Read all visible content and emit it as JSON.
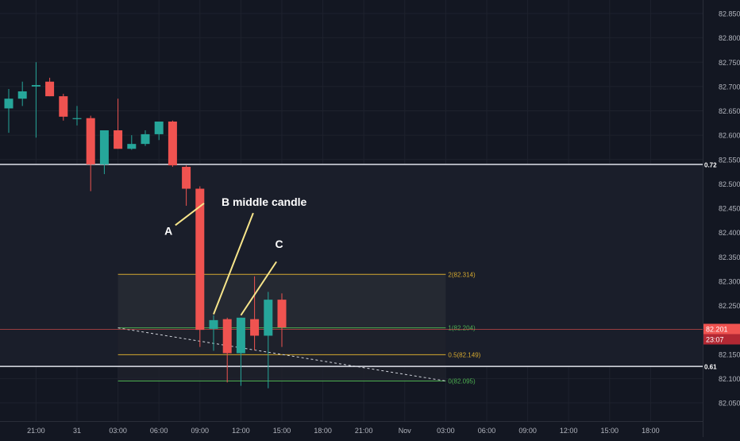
{
  "colors": {
    "background": "#131722",
    "up": "#26a69a",
    "down": "#ef5350",
    "grid": "#1e222d",
    "axis_text": "#b2b5be",
    "hline": "#e0e3eb",
    "fib_gold": "#d4a82f",
    "fib_green": "#4caf50",
    "price_line": "#ef5350",
    "annotation": "#f7e58a"
  },
  "chart_data": {
    "type": "candlestick",
    "title": "",
    "xlabel": "",
    "ylabel": "",
    "ylim": [
      82.02,
      82.86
    ],
    "yticks": [
      "82.850",
      "82.800",
      "82.750",
      "82.700",
      "82.650",
      "82.600",
      "82.550",
      "82.500",
      "82.450",
      "82.400",
      "82.350",
      "82.300",
      "82.250",
      "82.200",
      "82.150",
      "82.100",
      "82.050"
    ],
    "xticks": [
      {
        "i": 2,
        "label": "21:00"
      },
      {
        "i": 5,
        "label": "31"
      },
      {
        "i": 8,
        "label": "03:00"
      },
      {
        "i": 11,
        "label": "06:00"
      },
      {
        "i": 14,
        "label": "09:00"
      },
      {
        "i": 17,
        "label": "12:00"
      },
      {
        "i": 20,
        "label": "15:00"
      },
      {
        "i": 23,
        "label": "18:00"
      },
      {
        "i": 26,
        "label": "21:00"
      },
      {
        "i": 29,
        "label": "Nov"
      },
      {
        "i": 32,
        "label": "03:00"
      },
      {
        "i": 35,
        "label": "06:00"
      },
      {
        "i": 38,
        "label": "09:00"
      },
      {
        "i": 41,
        "label": "12:00"
      },
      {
        "i": 44,
        "label": "15:00"
      },
      {
        "i": 47,
        "label": "18:00"
      }
    ],
    "candles": [
      {
        "o": 82.655,
        "h": 82.695,
        "l": 82.605,
        "c": 82.675
      },
      {
        "o": 82.675,
        "h": 82.71,
        "l": 82.66,
        "c": 82.69
      },
      {
        "o": 82.7,
        "h": 82.75,
        "l": 82.595,
        "c": 82.703
      },
      {
        "o": 82.71,
        "h": 82.718,
        "l": 82.68,
        "c": 82.68
      },
      {
        "o": 82.68,
        "h": 82.685,
        "l": 82.63,
        "c": 82.638
      },
      {
        "o": 82.635,
        "h": 82.66,
        "l": 82.62,
        "c": 82.635
      },
      {
        "o": 82.635,
        "h": 82.64,
        "l": 82.485,
        "c": 82.54
      },
      {
        "o": 82.54,
        "h": 82.61,
        "l": 82.52,
        "c": 82.61
      },
      {
        "o": 82.61,
        "h": 82.675,
        "l": 82.572,
        "c": 82.572
      },
      {
        "o": 82.572,
        "h": 82.6,
        "l": 82.57,
        "c": 82.582
      },
      {
        "o": 82.582,
        "h": 82.61,
        "l": 82.578,
        "c": 82.602
      },
      {
        "o": 82.602,
        "h": 82.625,
        "l": 82.59,
        "c": 82.628
      },
      {
        "o": 82.628,
        "h": 82.63,
        "l": 82.535,
        "c": 82.538
      },
      {
        "o": 82.535,
        "h": 82.538,
        "l": 82.455,
        "c": 82.49
      },
      {
        "o": 82.49,
        "h": 82.495,
        "l": 82.165,
        "c": 82.2
      },
      {
        "o": 82.202,
        "h": 82.23,
        "l": 82.157,
        "c": 82.22
      },
      {
        "o": 82.222,
        "h": 82.225,
        "l": 82.092,
        "c": 82.152
      },
      {
        "o": 82.152,
        "h": 82.225,
        "l": 82.085,
        "c": 82.225
      },
      {
        "o": 82.222,
        "h": 82.31,
        "l": 82.158,
        "c": 82.188
      },
      {
        "o": 82.188,
        "h": 82.278,
        "l": 82.08,
        "c": 82.262
      },
      {
        "o": 82.262,
        "h": 82.275,
        "l": 82.165,
        "c": 82.205
      }
    ],
    "hlines": [
      {
        "price": 82.54,
        "label": "0.72"
      },
      {
        "price": 82.125,
        "label": "0.61"
      }
    ],
    "fib": {
      "start_i": 8,
      "end_i": 32,
      "levels": [
        {
          "price": 82.314,
          "label": "2(82.314)",
          "color": "gold"
        },
        {
          "price": 82.204,
          "label": "1(82.204)",
          "color": "green"
        },
        {
          "price": 82.149,
          "label": "0.5(82.149)",
          "color": "gold"
        },
        {
          "price": 82.095,
          "label": "0(82.095)",
          "color": "green"
        }
      ],
      "trend_from": {
        "i": 8,
        "price": 82.204
      },
      "trend_to": {
        "i": 32,
        "price": 82.095
      }
    },
    "current_price": {
      "price": 82.201,
      "label": "82.201",
      "countdown": "23:07"
    },
    "annotations": [
      {
        "text": "A",
        "label_i": 11.7,
        "label_price": 82.395,
        "line_from": {
          "i": 12.2,
          "price": 82.415
        },
        "line_to": {
          "i": 14.3,
          "price": 82.46
        }
      },
      {
        "text": "B middle candle",
        "label_i": 18.7,
        "label_price": 82.455,
        "line_from": {
          "i": 17.9,
          "price": 82.44
        },
        "line_to": {
          "i": 15.0,
          "price": 82.232
        }
      },
      {
        "text": "C",
        "label_i": 19.8,
        "label_price": 82.368,
        "line_from": {
          "i": 19.6,
          "price": 82.34
        },
        "line_to": {
          "i": 17.0,
          "price": 82.23
        }
      }
    ]
  }
}
